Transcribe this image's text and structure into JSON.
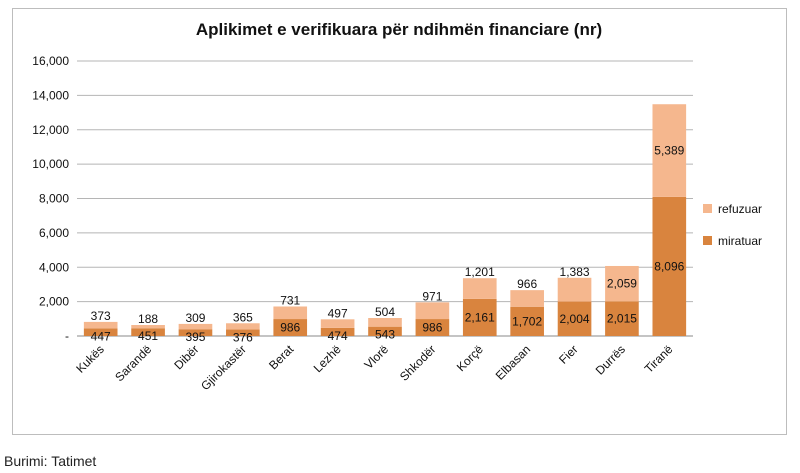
{
  "chart_data": {
    "type": "bar",
    "stacked": true,
    "title": "Aplikimet e verifikuara për ndihmën financiare (nr)",
    "xlabel": "",
    "ylabel": "",
    "ylim": [
      0,
      16000
    ],
    "yticks": [
      "-",
      "2,000",
      "4,000",
      "6,000",
      "8,000",
      "10,000",
      "12,000",
      "14,000",
      "16,000"
    ],
    "grid": true,
    "legend_position": "right",
    "categories": [
      "Kukës",
      "Sarandë",
      "Dibër",
      "Gjirokastër",
      "Berat",
      "Lezhë",
      "Vlorë",
      "Shkodër",
      "Korçë",
      "Elbasan",
      "Fier",
      "Durrës",
      "Tiranë"
    ],
    "series": [
      {
        "name": "miratuar",
        "color": "#d9843e",
        "values": [
          447,
          451,
          395,
          376,
          986,
          474,
          543,
          986,
          2161,
          1702,
          2004,
          2015,
          8096
        ],
        "labels": [
          "447",
          "451",
          "395",
          "376",
          "986",
          "474",
          "543",
          "986",
          "2,161",
          "1,702",
          "2,004",
          "2,015",
          "8,096"
        ]
      },
      {
        "name": "refuzuar",
        "color": "#f5b78e",
        "values": [
          373,
          188,
          309,
          365,
          731,
          497,
          504,
          971,
          1201,
          966,
          1383,
          2059,
          5389
        ],
        "labels": [
          "373",
          "188",
          "309",
          "365",
          "731",
          "497",
          "504",
          "971",
          "1,201",
          "966",
          "1,383",
          "2,059",
          "5,389"
        ]
      }
    ]
  },
  "source": "Burimi: Tatimet"
}
